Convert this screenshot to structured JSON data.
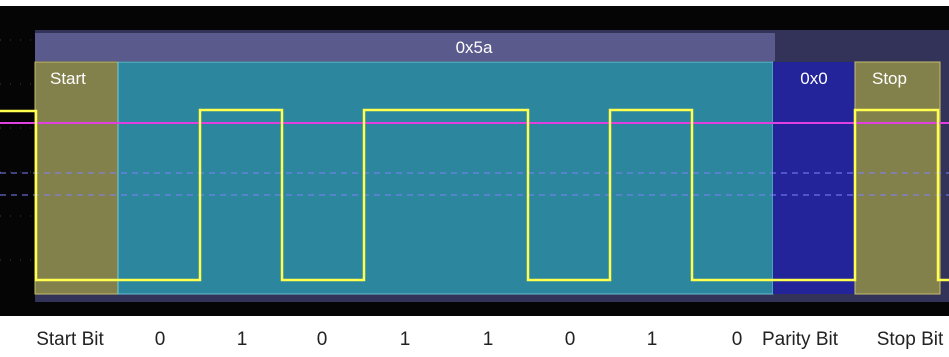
{
  "decode": {
    "byte": "0x5a",
    "start": "Start",
    "parity": "0x0",
    "stop": "Stop"
  },
  "bit_labels": [
    "Start Bit",
    "0",
    "1",
    "0",
    "1",
    "1",
    "0",
    "1",
    "0",
    "Parity Bit",
    "Stop Bit"
  ]
}
